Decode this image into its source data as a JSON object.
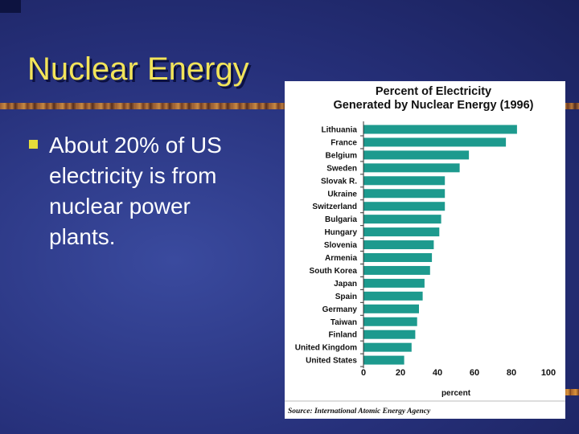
{
  "slide": {
    "title": "Nuclear Energy",
    "bullet": "About 20% of US electricity is from nuclear power plants."
  },
  "chart_data": {
    "type": "bar",
    "orientation": "horizontal",
    "title_line1": "Percent of Electricity",
    "title_line2": "Generated by Nuclear Energy (1996)",
    "xlabel": "percent",
    "ylabel": "",
    "xlim": [
      0,
      100
    ],
    "xticks": [
      "0",
      "20",
      "40",
      "60",
      "80",
      "100"
    ],
    "categories": [
      "Lithuania",
      "France",
      "Belgium",
      "Sweden",
      "Slovak R.",
      "Ukraine",
      "Switzerland",
      "Bulgaria",
      "Hungary",
      "Slovenia",
      "Armenia",
      "South Korea",
      "Japan",
      "Spain",
      "Germany",
      "Taiwan",
      "Finland",
      "United Kingdom",
      "United States"
    ],
    "values": [
      83,
      77,
      57,
      52,
      44,
      44,
      44,
      42,
      41,
      38,
      37,
      36,
      33,
      32,
      30,
      29,
      28,
      26,
      22
    ],
    "bar_color": "#1d9a8e",
    "grid": false,
    "source": "Source: International Atomic Energy Agency"
  }
}
